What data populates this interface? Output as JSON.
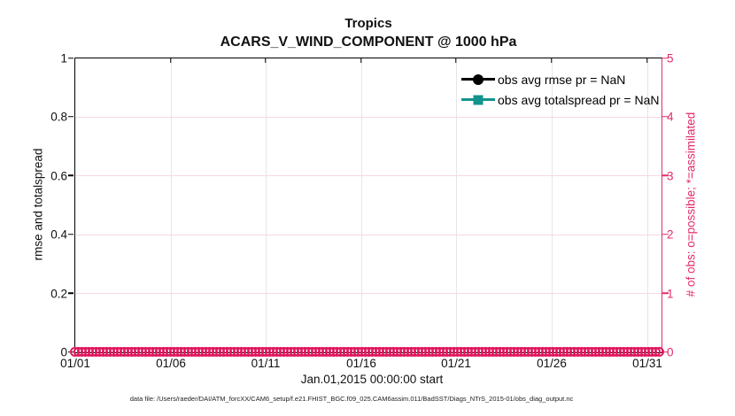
{
  "figure": {
    "title": "Tropics",
    "subtitle": "ACARS_V_WIND_COMPONENT @ 1000 hPa"
  },
  "chart_data": {
    "type": "line",
    "title": "Tropics",
    "subtitle": "ACARS_V_WIND_COMPONENT @ 1000 hPa",
    "xlabel": "Jan.01,2015 00:00:00 start",
    "ylabel_left": "rmse and totalspread",
    "ylabel_right": "# of obs: o=possible; *=assimilated",
    "x_ticks": [
      "01/01",
      "01/06",
      "01/11",
      "01/16",
      "01/21",
      "01/26",
      "01/31"
    ],
    "y_ticks_left": [
      "0",
      "0.2",
      "0.4",
      "0.6",
      "0.8",
      "1"
    ],
    "y_ticks_right": [
      "0",
      "1",
      "2",
      "3",
      "4",
      "5"
    ],
    "ylim_left": [
      0,
      1
    ],
    "ylim_right": [
      0,
      5
    ],
    "grid": true,
    "legend_position": "top-right-inside",
    "series": [
      {
        "name": "obs avg rmse pr = NaN",
        "color": "#000000",
        "marker": "filled-circle",
        "axis": "left",
        "values": "NaN — no points plotted"
      },
      {
        "name": "obs avg totalspread pr = NaN",
        "color": "#12948d",
        "marker": "filled-square",
        "axis": "left",
        "values": "NaN — no points plotted"
      },
      {
        "name": "# of obs (possible)",
        "color": "#e0195f",
        "marker": "open-circle",
        "axis": "right",
        "values": "0 at every time step from 01/01 through end of axis (dense row of overlapping circles along y=0)"
      }
    ]
  },
  "legend": {
    "entries": [
      {
        "label": "obs avg rmse pr = NaN",
        "color": "#000000",
        "marker": "circle"
      },
      {
        "label": "obs avg totalspread pr = NaN",
        "color": "#12948d",
        "marker": "square"
      }
    ]
  },
  "caption": "data file: /Users/raeder/DAI/ATM_forcXX/CAM6_setup/f.e21.FHIST_BGC.f09_025.CAM6assim.011/BadSST/Diags_NTrS_2015-01/obs_diag_output.nc",
  "colors": {
    "accent_pink": "#e42a6d",
    "band_pink": "#e0195f",
    "teal": "#12948d",
    "grid_gray": "#e6e6e6",
    "grid_pink": "#f6d8e3"
  }
}
